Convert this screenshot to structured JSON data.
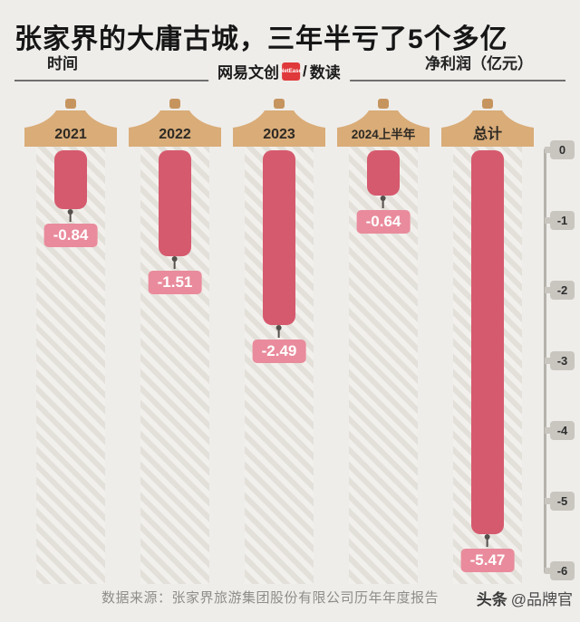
{
  "title": "张家界的大庸古城，三年半亏了5个多亿",
  "header": {
    "time_label": "时间",
    "unit_label": "净利润（亿元）",
    "logo": {
      "brand": "网易文创",
      "badge": "NetEase",
      "divider": "/",
      "sub": "数读"
    }
  },
  "chart_data": {
    "type": "bar",
    "title": "张家界的大庸古城，三年半亏了5个多亿",
    "categories": [
      "2021",
      "2022",
      "2023",
      "2024上半年",
      "总计"
    ],
    "values": [
      -0.84,
      -1.51,
      -2.49,
      -0.64,
      -5.47
    ],
    "value_labels": [
      "-0.84",
      "-1.51",
      "-2.49",
      "-0.64",
      "-5.47"
    ],
    "xlabel": "时间",
    "ylabel": "净利润（亿元）",
    "ylim": [
      -6,
      0
    ],
    "ytick_labels": [
      "0",
      "-1",
      "-2",
      "-3",
      "-4",
      "-5",
      "-6"
    ],
    "grid": false,
    "legend_position": "none"
  },
  "footer": {
    "source": "数据来源：张家界旅游集团股份有限公司历年年度报告",
    "watermark_brand": "头条",
    "watermark_user": "@品牌官"
  },
  "colors": {
    "background": "#efedea",
    "bar": "#d65a6e",
    "badge": "#e98b9c",
    "roof": "#d9ac78",
    "roof_dark": "#c6955f",
    "axis": "#b5b2ac",
    "tick_tab": "#c9c6c0",
    "logo_red": "#e0393b"
  }
}
